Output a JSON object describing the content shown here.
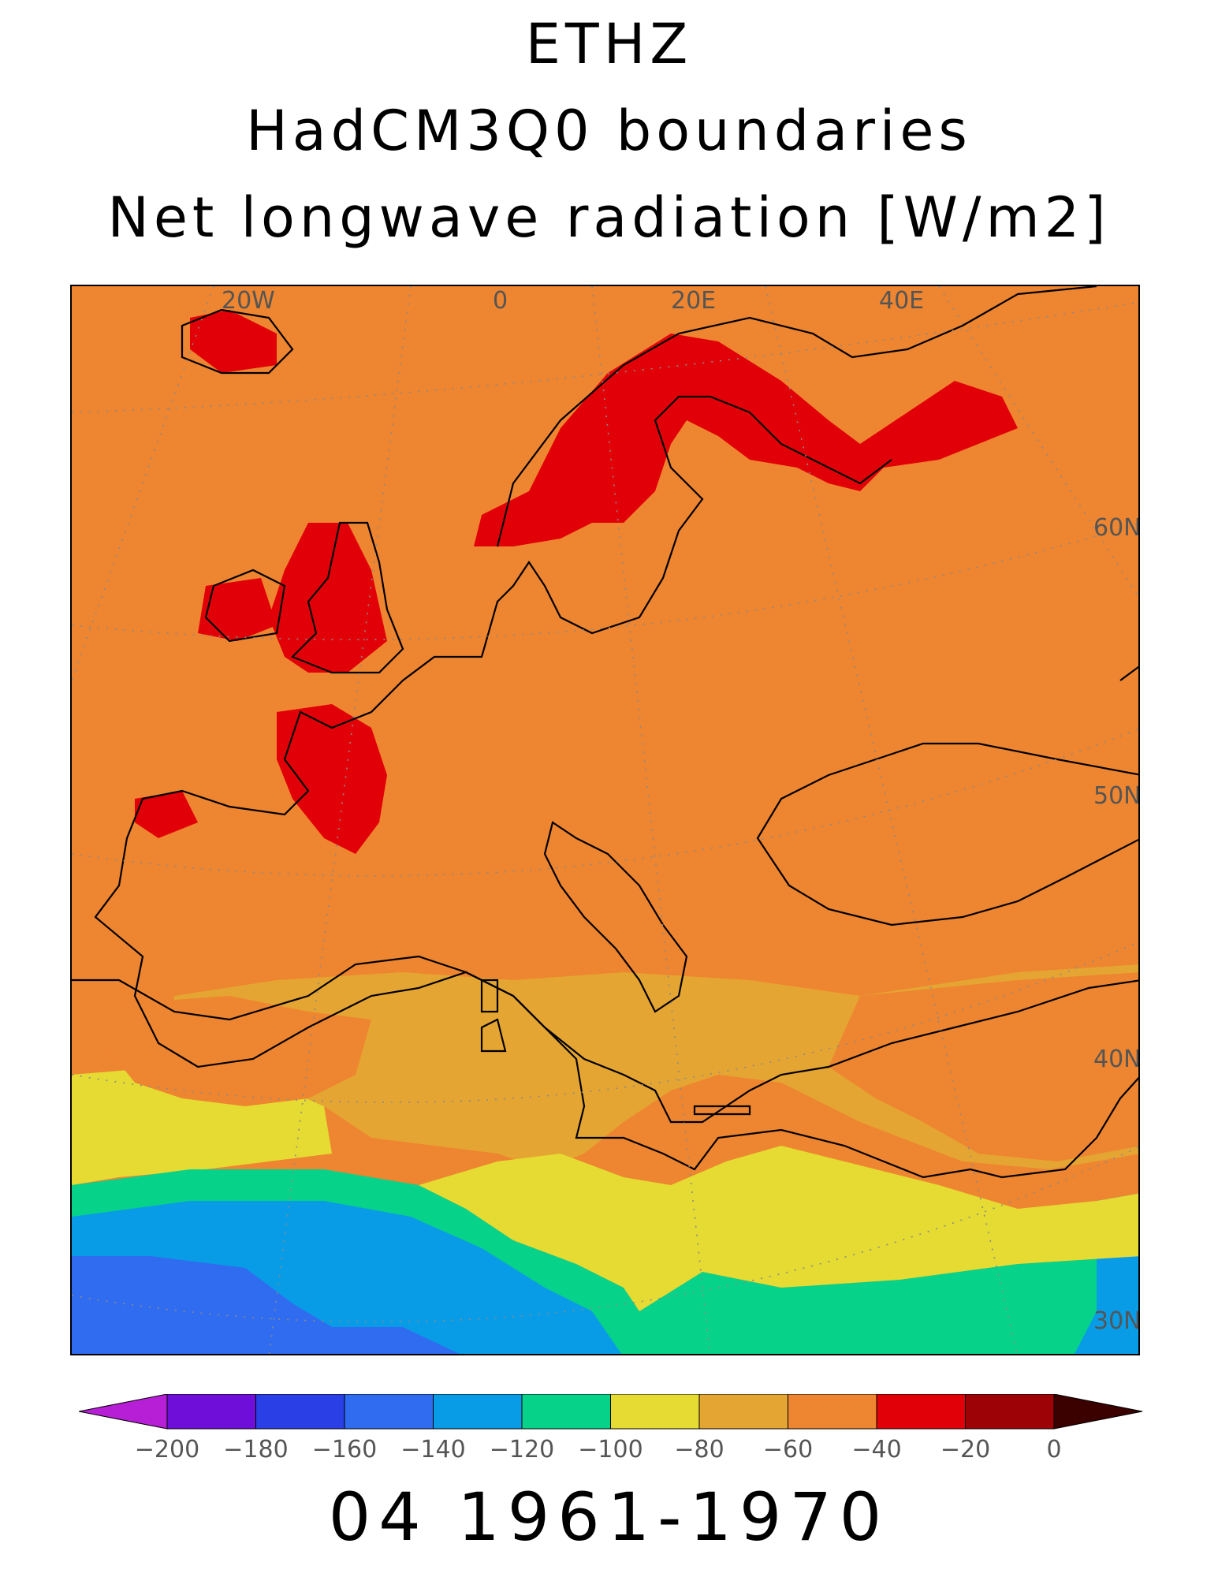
{
  "title": {
    "line1": "ETHZ",
    "line2": "HadCM3Q0 boundaries",
    "line3": "Net longwave radiation [W/m2]"
  },
  "map": {
    "lon_labels": [
      "20W",
      "0",
      "20E",
      "40E"
    ],
    "lat_labels": [
      "60N",
      "50N",
      "40N",
      "30N"
    ],
    "grid": true
  },
  "colorbar": {
    "ticks": [
      "-200",
      "-180",
      "-160",
      "-140",
      "-120",
      "-100",
      "-80",
      "-60",
      "-40",
      "-20",
      "0"
    ],
    "colors": [
      "#b71fd6",
      "#6e0ed8",
      "#2a3fe6",
      "#2f6cf0",
      "#099ce6",
      "#06d28a",
      "#e5db33",
      "#e5a532",
      "#ee8530",
      "#e20008",
      "#9c0206",
      "#3b0000"
    ],
    "extend": "both"
  },
  "footer": {
    "period": "04 1961-1970"
  }
}
